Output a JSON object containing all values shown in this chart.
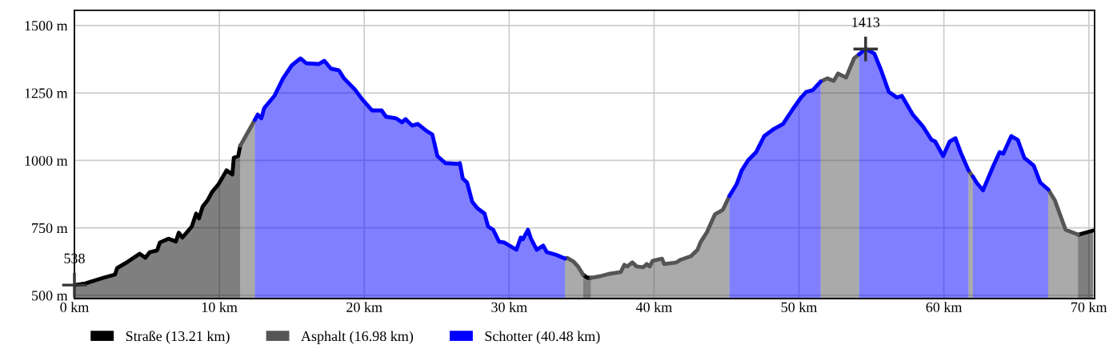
{
  "chart_data": {
    "type": "area",
    "xlim": [
      0,
      70.4
    ],
    "ylim": [
      488,
      1556
    ],
    "xticks": [
      {
        "value": 0,
        "label": "0 km"
      },
      {
        "value": 10,
        "label": "10 km"
      },
      {
        "value": 20,
        "label": "20 km"
      },
      {
        "value": 30,
        "label": "30 km"
      },
      {
        "value": 40,
        "label": "40 km"
      },
      {
        "value": 50,
        "label": "50 km"
      },
      {
        "value": 60,
        "label": "60 km"
      },
      {
        "value": 70,
        "label": "70 km"
      }
    ],
    "yticks": [
      {
        "value": 500,
        "label": "500 m"
      },
      {
        "value": 750,
        "label": "750 m"
      },
      {
        "value": 1000,
        "label": "1000 m"
      },
      {
        "value": 1250,
        "label": "1250 m"
      },
      {
        "value": 1500,
        "label": "1500 m"
      }
    ],
    "grid": true,
    "legend": "bottom",
    "annotations": [
      {
        "text": "538",
        "x": 0,
        "y": 538
      },
      {
        "text": "1413",
        "x": 54.6,
        "y": 1413
      }
    ],
    "series": [
      {
        "name": "Straße (13.21 km)",
        "color": "#000000",
        "x": [
          0,
          0.75,
          2.0,
          2.8,
          2.95,
          3.7,
          4.5,
          4.9,
          5.2,
          5.7,
          5.9,
          6.5,
          7.0,
          7.2,
          7.45,
          8.1,
          8.4,
          8.6,
          8.85,
          9.2,
          9.5,
          9.95,
          10.5,
          10.9,
          11.0,
          11.3,
          11.45,
          null,
          35.1,
          35.4,
          35.65,
          null,
          69.25,
          69.3,
          70.3
        ],
        "values": [
          538,
          544,
          565,
          577,
          601,
          625,
          654,
          639,
          660,
          666,
          696,
          710,
          699,
          732,
          714,
          755,
          803,
          785,
          829,
          853,
          883,
          912,
          963,
          948,
          1010,
          1016,
          1055,
          null,
          577,
          565,
          565,
          null,
          725,
          725,
          740
        ]
      },
      {
        "name": "Asphalt (16.98 km)",
        "color": "#555555",
        "x": [
          11.45,
          12.45,
          null,
          33.85,
          34.0,
          34.45,
          34.75,
          35.1,
          null,
          35.65,
          36.3,
          36.95,
          37.7,
          37.95,
          38.15,
          38.5,
          38.8,
          39.25,
          39.5,
          39.7,
          39.9,
          40.55,
          40.7,
          41.55,
          41.8,
          42.55,
          43.0,
          43.2,
          43.65,
          44.2,
          44.75,
          45.2,
          null,
          51.5,
          51.95,
          52.4,
          52.7,
          53.25,
          53.8,
          54.15,
          null,
          61.7,
          61.85,
          62.0,
          null,
          67.2,
          67.65,
          68.4,
          69.25
        ],
        "values": [
          1055,
          1150,
          null,
          636,
          639,
          625,
          607,
          577,
          null,
          565,
          571,
          580,
          586,
          613,
          607,
          622,
          607,
          604,
          616,
          607,
          628,
          636,
          616,
          622,
          631,
          645,
          669,
          696,
          734,
          800,
          817,
          868,
          null,
          1292,
          1304,
          1295,
          1322,
          1307,
          1378,
          1393,
          null,
          963,
          951,
          940,
          null,
          892,
          853,
          743,
          725
        ]
      },
      {
        "name": "Schotter (40.48 km)",
        "color": "#0000ff",
        "x": [
          12.45,
          12.65,
          12.9,
          13.1,
          13.8,
          14.4,
          15.0,
          15.6,
          16.0,
          16.85,
          17.25,
          17.7,
          18.25,
          18.6,
          19.35,
          19.9,
          20.55,
          21.2,
          21.5,
          22.2,
          22.6,
          22.85,
          23.3,
          23.7,
          24.25,
          24.7,
          25.05,
          25.6,
          26.45,
          26.6,
          26.8,
          27.1,
          27.45,
          27.8,
          28.3,
          28.55,
          28.9,
          29.3,
          29.65,
          30.5,
          30.8,
          30.95,
          31.3,
          31.5,
          31.9,
          32.35,
          32.6,
          33.2,
          33.85,
          null,
          45.2,
          45.7,
          46.05,
          46.5,
          47.05,
          47.6,
          48.2,
          48.9,
          49.55,
          50.1,
          50.5,
          50.95,
          51.5,
          null,
          54.15,
          54.6,
          55.2,
          55.65,
          56.2,
          56.75,
          57.1,
          57.85,
          58.55,
          59.15,
          59.4,
          59.95,
          60.4,
          60.8,
          61.15,
          61.7,
          null,
          62.0,
          62.25,
          62.7,
          63.4,
          63.85,
          64.1,
          64.65,
          65.1,
          65.55,
          66.2,
          66.65,
          67.2
        ],
        "values": [
          1150,
          1170,
          1156,
          1194,
          1239,
          1304,
          1352,
          1378,
          1360,
          1357,
          1369,
          1340,
          1334,
          1304,
          1263,
          1224,
          1185,
          1185,
          1162,
          1156,
          1141,
          1153,
          1129,
          1135,
          1111,
          1096,
          1016,
          990,
          987,
          990,
          933,
          918,
          847,
          823,
          803,
          755,
          743,
          699,
          696,
          669,
          714,
          708,
          743,
          711,
          669,
          684,
          660,
          651,
          636,
          null,
          868,
          912,
          963,
          1001,
          1031,
          1090,
          1114,
          1135,
          1188,
          1230,
          1254,
          1260,
          1292,
          null,
          1393,
          1413,
          1396,
          1337,
          1254,
          1233,
          1239,
          1170,
          1126,
          1076,
          1070,
          1016,
          1070,
          1082,
          1031,
          963,
          null,
          940,
          918,
          889,
          978,
          1031,
          1025,
          1090,
          1076,
          1010,
          981,
          918,
          892
        ]
      }
    ]
  }
}
